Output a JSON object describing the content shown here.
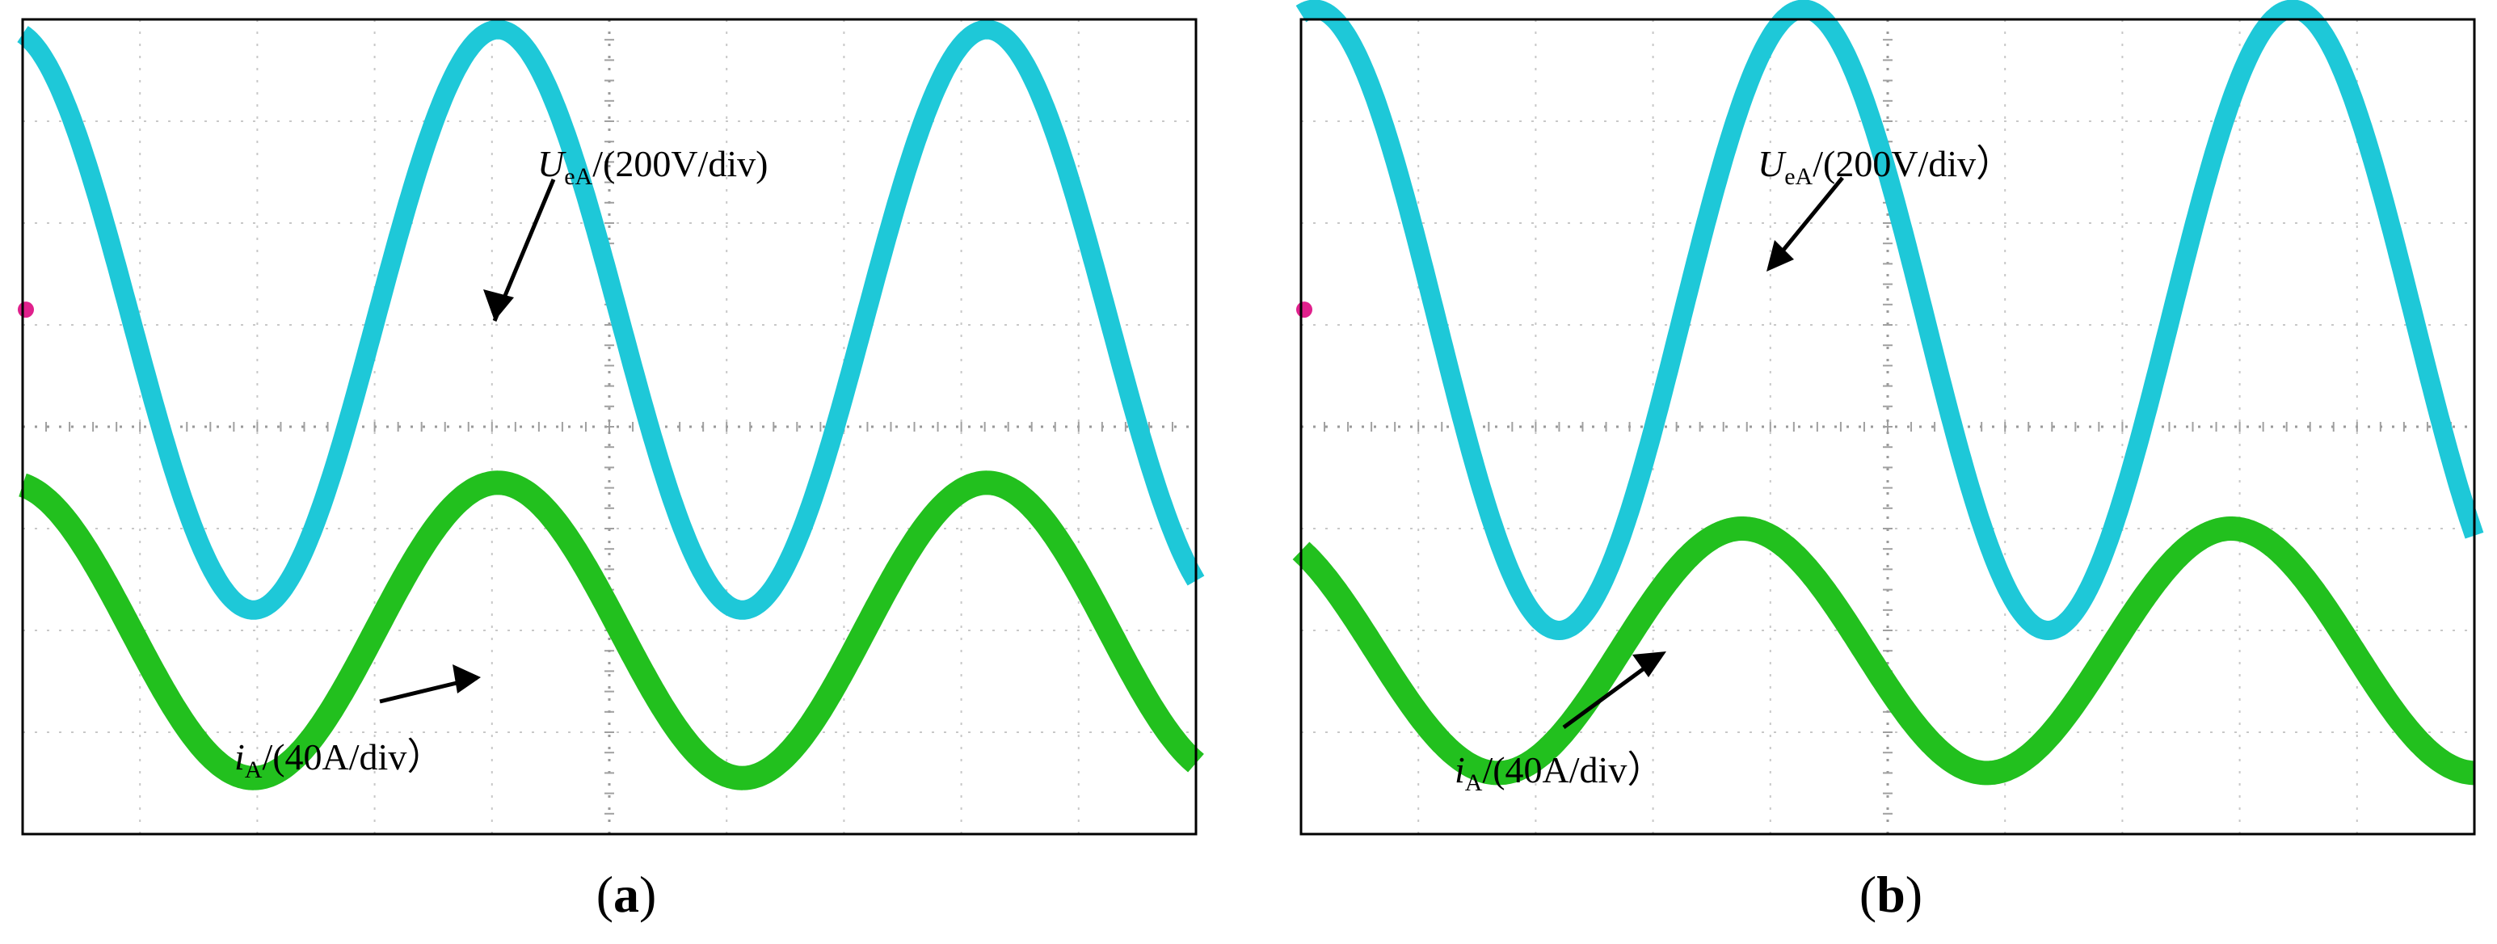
{
  "colors": {
    "voltage_trace": "#1ec8d8",
    "current_trace": "#22c01e",
    "grid": "#c8c8c8",
    "marker": "#e0208c",
    "frame": "#000000"
  },
  "chart_data": [
    {
      "type": "line",
      "panel_label": "a",
      "grid": true,
      "grid_divisions": {
        "x": 10,
        "y": 8
      },
      "series": [
        {
          "annotation_symbol": "U",
          "annotation_subscript": "eA",
          "annotation_suffix": "/(200V/div)",
          "amplitude_div": 2.85,
          "offset_div": 1.05,
          "cycles": 2.4,
          "phase_deg": 10
        },
        {
          "annotation_symbol": "i",
          "annotation_subscript": "A",
          "annotation_suffix": "/(40A/div）",
          "amplitude_div": 1.45,
          "offset_div": -2.0,
          "cycles": 2.4,
          "phase_deg": 10
        }
      ]
    },
    {
      "type": "line",
      "panel_label": "b",
      "grid": true,
      "grid_divisions": {
        "x": 10,
        "y": 8
      },
      "series": [
        {
          "annotation_symbol": "U",
          "annotation_subscript": "eA",
          "annotation_suffix": "/(200V/div）",
          "amplitude_div": 3.05,
          "offset_div": 1.05,
          "cycles": 2.4,
          "phase_deg": -10
        },
        {
          "annotation_symbol": "i",
          "annotation_subscript": "A",
          "annotation_suffix": "/(40A/div）",
          "amplitude_div": 1.2,
          "offset_div": -2.2,
          "cycles": 2.4,
          "phase_deg": 35
        }
      ]
    }
  ]
}
